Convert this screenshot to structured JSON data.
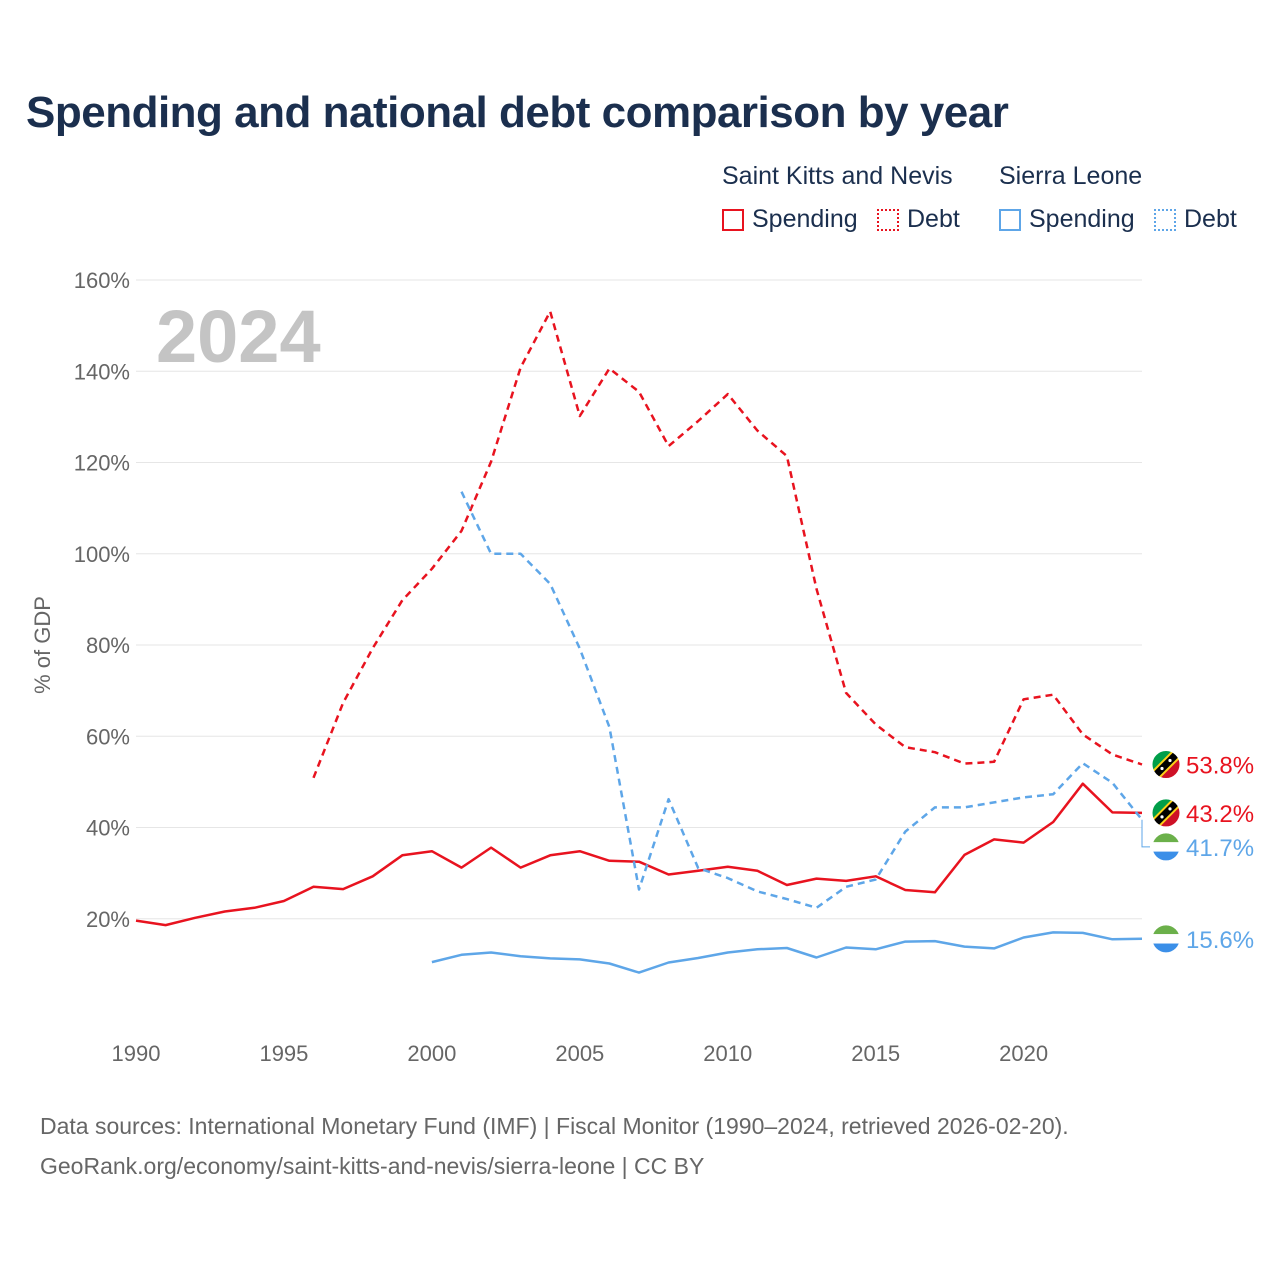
{
  "title": "Spending and national debt comparison by year",
  "legend": {
    "groups": [
      {
        "country": "Saint Kitts and Nevis",
        "color": "#e8131f",
        "items": [
          {
            "label": "Spending",
            "style": "solid"
          },
          {
            "label": "Debt",
            "style": "dotted"
          }
        ]
      },
      {
        "country": "Sierra Leone",
        "color": "#5ea6e8",
        "items": [
          {
            "label": "Spending",
            "style": "solid"
          },
          {
            "label": "Debt",
            "style": "dotted"
          }
        ]
      }
    ]
  },
  "colors": {
    "saint_kitts": "#e8131f",
    "sierra_leone": "#5ea6e8",
    "grid": "#e6e6e6",
    "title": "#1b2f4e",
    "overlay": "#c4c4c4"
  },
  "source": {
    "line1": "Data sources: International Monetary Fund (IMF) | Fiscal Monitor (1990–2024, retrieved 2026-02-20).",
    "line2": "GeoRank.org/economy/saint-kitts-and-nevis/sierra-leone | CC BY"
  },
  "chart_data": {
    "type": "line",
    "title": "Spending and national debt comparison by year",
    "ylabel": "% of GDP",
    "xlabel": "",
    "year_overlay": "2024",
    "xlim": [
      1990,
      2024
    ],
    "ylim": [
      0,
      160
    ],
    "x_ticks": [
      1990,
      1995,
      2000,
      2005,
      2010,
      2015,
      2020
    ],
    "y_ticks": [
      20,
      40,
      60,
      80,
      100,
      120,
      140,
      160
    ],
    "y_tick_labels": [
      "20%",
      "40%",
      "60%",
      "80%",
      "100%",
      "120%",
      "140%",
      "160%"
    ],
    "grid": true,
    "series": [
      {
        "name": "Saint Kitts and Nevis Spending",
        "country": "Saint Kitts and Nevis",
        "metric": "Spending",
        "color": "#e8131f",
        "dashed": false,
        "end_label": "43.2%",
        "end_value": 43.2,
        "flag": "kn",
        "x": [
          1990,
          1991,
          1992,
          1993,
          1994,
          1995,
          1996,
          1997,
          1998,
          1999,
          2000,
          2001,
          2002,
          2003,
          2004,
          2005,
          2006,
          2007,
          2008,
          2009,
          2010,
          2011,
          2012,
          2013,
          2014,
          2015,
          2016,
          2017,
          2018,
          2019,
          2020,
          2021,
          2022,
          2023,
          2024
        ],
        "values": [
          19.6,
          18.6,
          20.2,
          21.6,
          22.4,
          23.9,
          27.0,
          26.5,
          29.3,
          33.9,
          34.8,
          31.2,
          35.6,
          31.2,
          33.9,
          34.8,
          32.7,
          32.5,
          29.7,
          30.5,
          31.4,
          30.5,
          27.4,
          28.8,
          28.3,
          29.3,
          26.3,
          25.8,
          34.0,
          37.4,
          36.7,
          41.2,
          49.6,
          43.3,
          43.2
        ]
      },
      {
        "name": "Saint Kitts and Nevis Debt",
        "country": "Saint Kitts and Nevis",
        "metric": "Debt",
        "color": "#e8131f",
        "dashed": true,
        "end_label": "53.8%",
        "end_value": 53.8,
        "flag": "kn",
        "x": [
          1996,
          1997,
          1998,
          1999,
          2000,
          2001,
          2002,
          2003,
          2004,
          2005,
          2006,
          2007,
          2008,
          2009,
          2010,
          2011,
          2012,
          2013,
          2014,
          2015,
          2016,
          2017,
          2018,
          2019,
          2020,
          2021,
          2022,
          2023,
          2024
        ],
        "values": [
          50.9,
          67.3,
          79.3,
          89.8,
          96.7,
          105.0,
          120.2,
          140.8,
          153.1,
          130.2,
          140.6,
          135.5,
          123.6,
          129.1,
          135.0,
          127.0,
          121.4,
          92.3,
          69.5,
          62.6,
          57.6,
          56.5,
          54.0,
          54.4,
          68.1,
          69.1,
          60.4,
          56.0,
          53.8
        ]
      },
      {
        "name": "Sierra Leone Spending",
        "country": "Sierra Leone",
        "metric": "Spending",
        "color": "#5ea6e8",
        "dashed": false,
        "end_label": "15.6%",
        "end_value": 15.6,
        "flag": "sl",
        "x": [
          2000,
          2001,
          2002,
          2003,
          2004,
          2005,
          2006,
          2007,
          2008,
          2009,
          2010,
          2011,
          2012,
          2013,
          2014,
          2015,
          2016,
          2017,
          2018,
          2019,
          2020,
          2021,
          2022,
          2023,
          2024
        ],
        "values": [
          10.5,
          12.1,
          12.6,
          11.8,
          11.3,
          11.1,
          10.2,
          8.2,
          10.4,
          11.4,
          12.6,
          13.3,
          13.6,
          11.5,
          13.7,
          13.3,
          15.0,
          15.1,
          13.9,
          13.5,
          15.9,
          17.0,
          16.9,
          15.5,
          15.6
        ]
      },
      {
        "name": "Sierra Leone Debt",
        "country": "Sierra Leone",
        "metric": "Debt",
        "color": "#5ea6e8",
        "dashed": true,
        "end_label": "41.7%",
        "end_value": 41.7,
        "flag": "sl",
        "x": [
          2001,
          2002,
          2003,
          2004,
          2005,
          2006,
          2007,
          2008,
          2009,
          2010,
          2011,
          2012,
          2013,
          2014,
          2015,
          2016,
          2017,
          2018,
          2019,
          2020,
          2021,
          2022,
          2023,
          2024
        ],
        "values": [
          113.6,
          100.0,
          100.0,
          93.4,
          79.2,
          62.0,
          26.4,
          46.2,
          31.1,
          28.9,
          26.0,
          24.3,
          22.4,
          27.0,
          28.6,
          39.1,
          44.4,
          44.4,
          45.5,
          46.6,
          47.3,
          54.1,
          49.8,
          41.7
        ]
      }
    ]
  }
}
